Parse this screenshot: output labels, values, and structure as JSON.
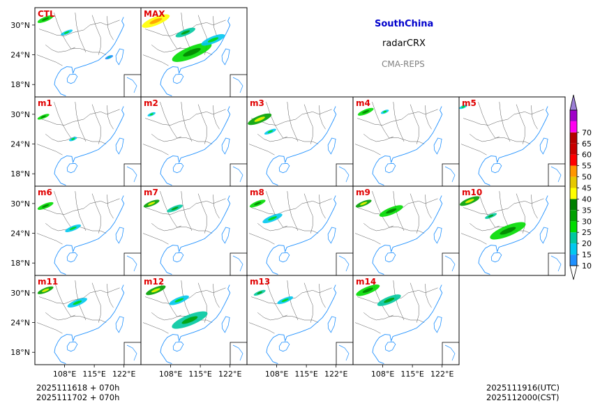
{
  "header": {
    "region": "SouthChina",
    "variable": "radarCRX",
    "model": "CMA-REPS"
  },
  "footer": {
    "init_utc": "2025111618  +  070h",
    "init_cst": "2025111702  +  070h",
    "valid_utc": "2025111916(UTC)",
    "valid_cst": "2025112000(CST)"
  },
  "chart_data": {
    "type": "heatmap",
    "title": "SouthChina radarCRX CMA-REPS",
    "panels": [
      {
        "label": "CTL",
        "echoes": [
          {
            "lon": 103.5,
            "lat": 31.2,
            "len": 4,
            "dBZ": 25
          },
          {
            "lon": 108.5,
            "lat": 28.5,
            "len": 3,
            "dBZ": 15
          },
          {
            "lon": 118.5,
            "lat": 23.5,
            "len": 2,
            "dBZ": 12
          }
        ]
      },
      {
        "label": "MAX",
        "echoes": [
          {
            "lon": 104.5,
            "lat": 30.8,
            "len": 7,
            "dBZ": 40
          },
          {
            "lon": 113.0,
            "lat": 24.5,
            "len": 10,
            "dBZ": 25
          },
          {
            "lon": 118.0,
            "lat": 27.0,
            "len": 6,
            "dBZ": 15
          },
          {
            "lon": 111.5,
            "lat": 28.5,
            "len": 5,
            "dBZ": 20
          }
        ]
      },
      {
        "label": "m1",
        "echoes": [
          {
            "lon": 103.0,
            "lat": 29.5,
            "len": 3,
            "dBZ": 25
          },
          {
            "lon": 110.0,
            "lat": 25.0,
            "len": 2,
            "dBZ": 15
          }
        ]
      },
      {
        "label": "m2",
        "echoes": [
          {
            "lon": 103.5,
            "lat": 30.0,
            "len": 2,
            "dBZ": 15
          }
        ]
      },
      {
        "label": "m3",
        "echoes": [
          {
            "lon": 104.0,
            "lat": 29.0,
            "len": 6,
            "dBZ": 30
          },
          {
            "lon": 106.5,
            "lat": 26.5,
            "len": 3,
            "dBZ": 15
          }
        ]
      },
      {
        "label": "m4",
        "echoes": [
          {
            "lon": 104.0,
            "lat": 30.5,
            "len": 4,
            "dBZ": 25
          },
          {
            "lon": 108.5,
            "lat": 30.5,
            "len": 2,
            "dBZ": 15
          }
        ]
      },
      {
        "label": "m5",
        "echoes": [
          {
            "lon": 102.0,
            "lat": 31.5,
            "len": 2,
            "dBZ": 15
          }
        ]
      },
      {
        "label": "m6",
        "echoes": [
          {
            "lon": 103.5,
            "lat": 29.5,
            "len": 4,
            "dBZ": 25
          },
          {
            "lon": 110.0,
            "lat": 25.0,
            "len": 4,
            "dBZ": 15
          }
        ]
      },
      {
        "label": "m7",
        "echoes": [
          {
            "lon": 103.5,
            "lat": 30.0,
            "len": 4,
            "dBZ": 30
          },
          {
            "lon": 109.0,
            "lat": 29.0,
            "len": 4,
            "dBZ": 20
          }
        ]
      },
      {
        "label": "m8",
        "echoes": [
          {
            "lon": 103.5,
            "lat": 30.0,
            "len": 4,
            "dBZ": 25
          },
          {
            "lon": 107.0,
            "lat": 27.0,
            "len": 5,
            "dBZ": 15
          }
        ]
      },
      {
        "label": "m9",
        "echoes": [
          {
            "lon": 103.5,
            "lat": 30.0,
            "len": 4,
            "dBZ": 30
          },
          {
            "lon": 110.0,
            "lat": 28.5,
            "len": 6,
            "dBZ": 25
          }
        ]
      },
      {
        "label": "m10",
        "echoes": [
          {
            "lon": 103.5,
            "lat": 30.5,
            "len": 5,
            "dBZ": 30
          },
          {
            "lon": 112.5,
            "lat": 24.5,
            "len": 9,
            "dBZ": 25
          },
          {
            "lon": 108.5,
            "lat": 27.5,
            "len": 3,
            "dBZ": 20
          }
        ]
      },
      {
        "label": "m11",
        "echoes": [
          {
            "lon": 103.5,
            "lat": 30.5,
            "len": 4,
            "dBZ": 30
          },
          {
            "lon": 111.0,
            "lat": 28.0,
            "len": 5,
            "dBZ": 15
          }
        ]
      },
      {
        "label": "m12",
        "echoes": [
          {
            "lon": 104.5,
            "lat": 30.5,
            "len": 5,
            "dBZ": 30
          },
          {
            "lon": 112.5,
            "lat": 24.5,
            "len": 9,
            "dBZ": 20
          },
          {
            "lon": 110.0,
            "lat": 28.5,
            "len": 5,
            "dBZ": 15
          }
        ]
      },
      {
        "label": "m13",
        "echoes": [
          {
            "lon": 104.0,
            "lat": 30.0,
            "len": 3,
            "dBZ": 20
          },
          {
            "lon": 110.0,
            "lat": 28.5,
            "len": 4,
            "dBZ": 15
          }
        ]
      },
      {
        "label": "m14",
        "echoes": [
          {
            "lon": 104.5,
            "lat": 30.5,
            "len": 6,
            "dBZ": 25
          },
          {
            "lon": 109.5,
            "lat": 28.5,
            "len": 6,
            "dBZ": 20
          }
        ]
      }
    ],
    "lon_range": [
      101,
      126
    ],
    "lat_range": [
      15.5,
      33.5
    ],
    "x_ticks": [
      {
        "value": 108,
        "label": "108°E"
      },
      {
        "value": 115,
        "label": "115°E"
      },
      {
        "value": 122,
        "label": "122°E"
      }
    ],
    "y_ticks": [
      {
        "value": 30,
        "label": "30°N"
      },
      {
        "value": 24,
        "label": "24°N"
      },
      {
        "value": 18,
        "label": "18°N"
      }
    ],
    "colorbar": {
      "levels": [
        10,
        15,
        20,
        25,
        30,
        35,
        40,
        45,
        50,
        55,
        60,
        65,
        70
      ],
      "labels": [
        "10",
        "15",
        "20",
        "25",
        "30",
        "35",
        "40",
        "45",
        "50",
        "55",
        "60",
        "65",
        "70"
      ],
      "colors": [
        "#1e90ff",
        "#00c8f0",
        "#00c8a0",
        "#00dc00",
        "#00a000",
        "#008000",
        "#ffff00",
        "#e6c800",
        "#ff9600",
        "#ff0000",
        "#c80000",
        "#b40000",
        "#ff00f0",
        "#a000c8",
        "#9b7fd6"
      ],
      "under_color": "#ffffff"
    },
    "style": {
      "label_color": "#e00000",
      "coast_color": "#1e90ff",
      "border_color": "#555555"
    }
  }
}
